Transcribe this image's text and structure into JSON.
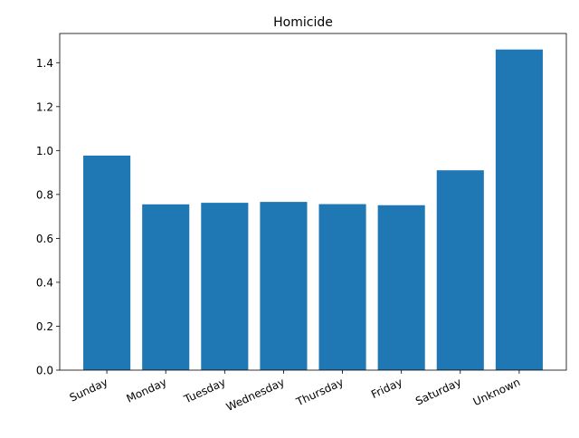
{
  "chart_data": {
    "type": "bar",
    "title": "Homicide",
    "xlabel": "",
    "ylabel": "",
    "categories": [
      "Sunday",
      "Monday",
      "Tuesday",
      "Wednesday",
      "Thursday",
      "Friday",
      "Saturday",
      "Unknown"
    ],
    "values": [
      0.977,
      0.755,
      0.762,
      0.766,
      0.756,
      0.751,
      0.91,
      1.46
    ],
    "ylim": [
      0,
      1.533
    ],
    "yticks": [
      "0.0",
      "0.2",
      "0.4",
      "0.6",
      "0.8",
      "1.0",
      "1.2",
      "1.4"
    ],
    "grid": false,
    "bar_color": "#1f77b4"
  }
}
